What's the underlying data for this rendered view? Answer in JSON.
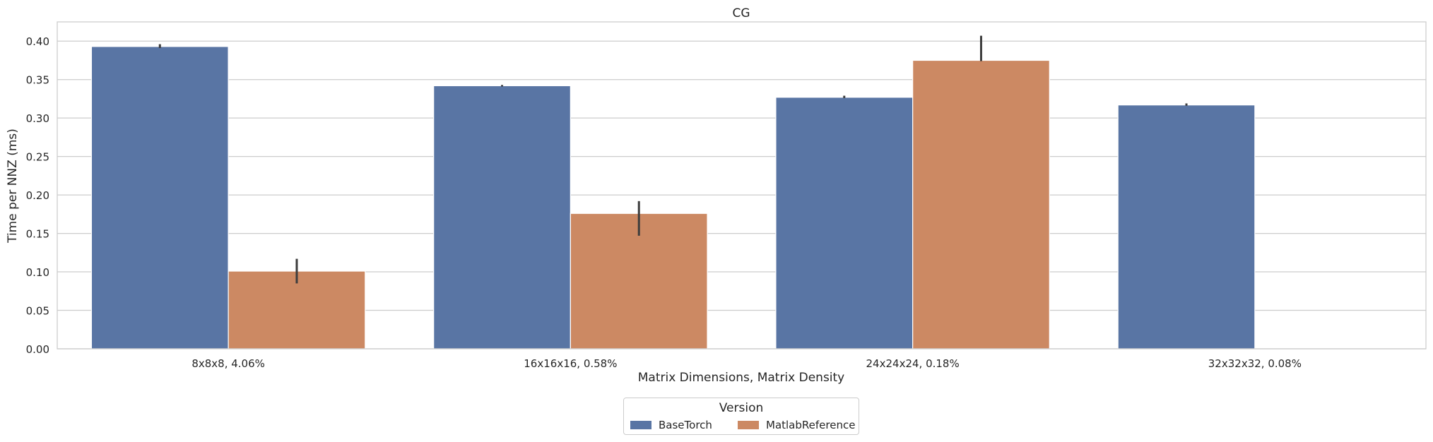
{
  "chart_data": {
    "type": "bar",
    "title": "CG",
    "xlabel": "Matrix Dimensions, Matrix Density",
    "ylabel": "Time per NNZ (ms)",
    "categories": [
      "8x8x8, 4.06%",
      "16x16x16, 0.58%",
      "24x24x24, 0.18%",
      "32x32x32, 0.08%"
    ],
    "ylim": [
      0,
      0.425
    ],
    "yticks": [
      0.0,
      0.05,
      0.1,
      0.15,
      0.2,
      0.25,
      0.3,
      0.35,
      0.4
    ],
    "ytick_labels": [
      "0.00",
      "0.05",
      "0.10",
      "0.15",
      "0.20",
      "0.25",
      "0.30",
      "0.35",
      "0.40"
    ],
    "grid": "horizontal",
    "legend_title": "Version",
    "legend_placement": "bottom-center",
    "series": [
      {
        "name": "BaseTorch",
        "color": "#5975a4",
        "values": [
          0.393,
          0.342,
          0.327,
          0.317
        ],
        "error_low": [
          0.391,
          0.341,
          0.326,
          0.316
        ],
        "error_high": [
          0.396,
          0.343,
          0.329,
          0.319
        ]
      },
      {
        "name": "MatlabReference",
        "color": "#cc8963",
        "values": [
          0.101,
          0.176,
          0.375,
          null
        ],
        "error_low": [
          0.085,
          0.147,
          0.374,
          null
        ],
        "error_high": [
          0.117,
          0.192,
          0.407,
          null
        ]
      }
    ]
  }
}
